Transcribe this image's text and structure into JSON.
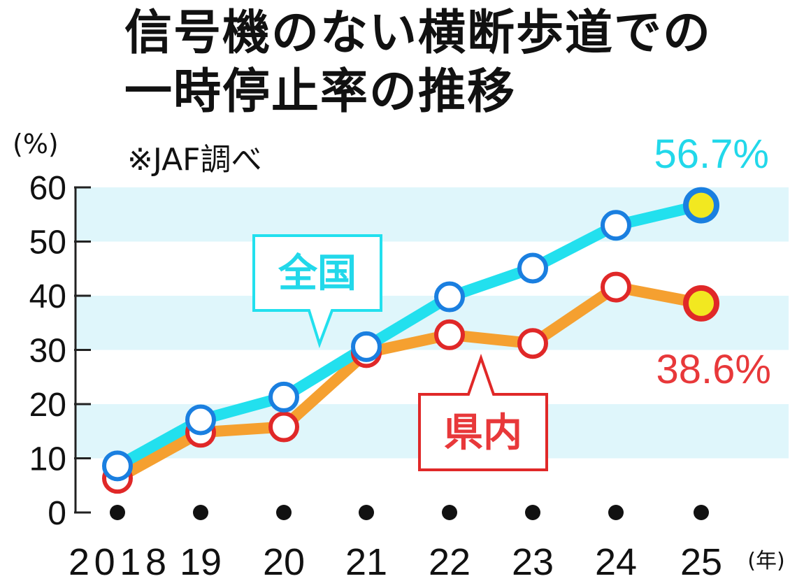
{
  "title": {
    "line1": "信号機のない横断歩道での",
    "line2": "一時停止率の推移"
  },
  "source_note": "※JAF調べ",
  "colors": {
    "national_line": "#22e0ee",
    "national_marker": "#1a7fe0",
    "pref_line": "#f5a030",
    "pref_marker": "#e02828",
    "band": "#dff6fb",
    "highlight_fill": "#f2e820",
    "national_text": "#22d8ea",
    "pref_text": "#e8383a"
  },
  "chart_data": {
    "type": "line",
    "ylabel": "(%)",
    "xunit": "(年)",
    "ylim": [
      0,
      60
    ],
    "yticks": [
      "0",
      "10",
      "20",
      "30",
      "40",
      "50",
      "60"
    ],
    "categories": [
      "2018",
      "19",
      "20",
      "21",
      "22",
      "23",
      "24",
      "25"
    ],
    "grid": "alternating horizontal bands",
    "series": [
      {
        "name": "全国",
        "values": [
          8.6,
          17.1,
          21.3,
          30.6,
          39.8,
          45.1,
          53.0,
          56.7
        ],
        "end_label": "56.7%"
      },
      {
        "name": "県内",
        "values": [
          6.3,
          14.8,
          15.8,
          29.5,
          32.8,
          31.2,
          41.6,
          38.6
        ],
        "end_label": "38.6%"
      }
    ]
  }
}
